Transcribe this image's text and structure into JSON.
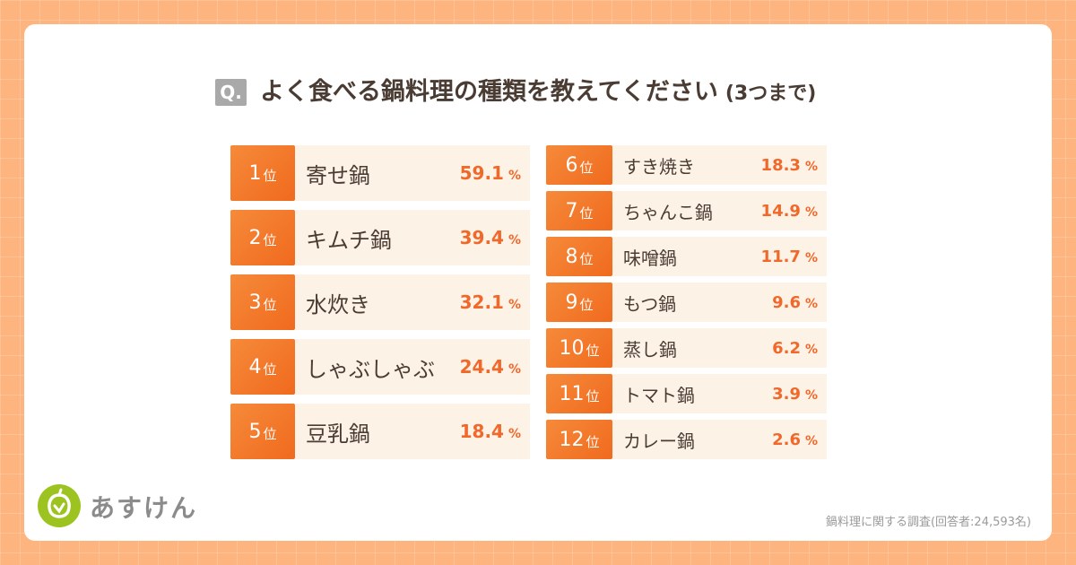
{
  "question_mark": "Q.",
  "title": "よく食べる鍋料理の種類を教えてください",
  "title_note": "(3つまで)",
  "rank_suffix": "位",
  "unit": "%",
  "rankings": [
    {
      "rank": 1,
      "name": "寄せ鍋",
      "value": 59.1
    },
    {
      "rank": 2,
      "name": "キムチ鍋",
      "value": 39.4
    },
    {
      "rank": 3,
      "name": "水炊き",
      "value": 32.1
    },
    {
      "rank": 4,
      "name": "しゃぶしゃぶ",
      "value": 24.4
    },
    {
      "rank": 5,
      "name": "豆乳鍋",
      "value": 18.4
    },
    {
      "rank": 6,
      "name": "すき焼き",
      "value": 18.3
    },
    {
      "rank": 7,
      "name": "ちゃんこ鍋",
      "value": 14.9
    },
    {
      "rank": 8,
      "name": "味噌鍋",
      "value": 11.7
    },
    {
      "rank": 9,
      "name": "もつ鍋",
      "value": 9.6
    },
    {
      "rank": 10,
      "name": "蒸し鍋",
      "value": 6.2
    },
    {
      "rank": 11,
      "name": "トマト鍋",
      "value": 3.9
    },
    {
      "rank": 12,
      "name": "カレー鍋",
      "value": 2.6
    }
  ],
  "logo": "あすけん",
  "footnote": "鍋料理に関する調査(回答者:24,593名)"
}
